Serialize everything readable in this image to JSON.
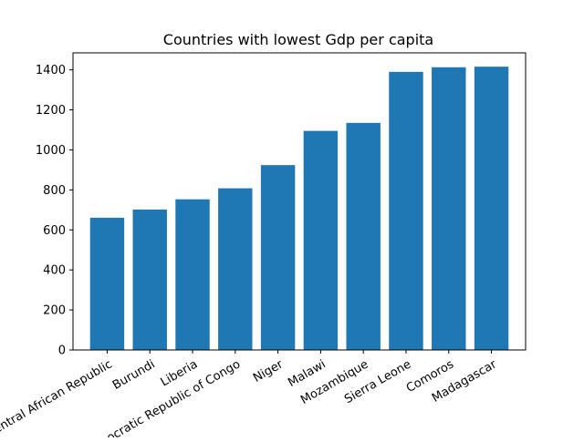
{
  "chart_data": {
    "type": "bar",
    "title": "Countries with lowest Gdp per capita",
    "xlabel": "",
    "ylabel": "",
    "categories": [
      "Central African Republic",
      "Burundi",
      "Liberia",
      "Democratic Republic of Congo",
      "Niger",
      "Malawi",
      "Mozambique",
      "Sierra Leone",
      "Comoros",
      "Madagascar"
    ],
    "values": [
      661,
      702,
      753,
      808,
      924,
      1095,
      1135,
      1390,
      1413,
      1416
    ],
    "ylim": [
      0,
      1485
    ],
    "yticks": [
      0,
      200,
      400,
      600,
      800,
      1000,
      1200,
      1400
    ],
    "bar_color": "#1f77b4",
    "grid": false,
    "legend": "none"
  }
}
